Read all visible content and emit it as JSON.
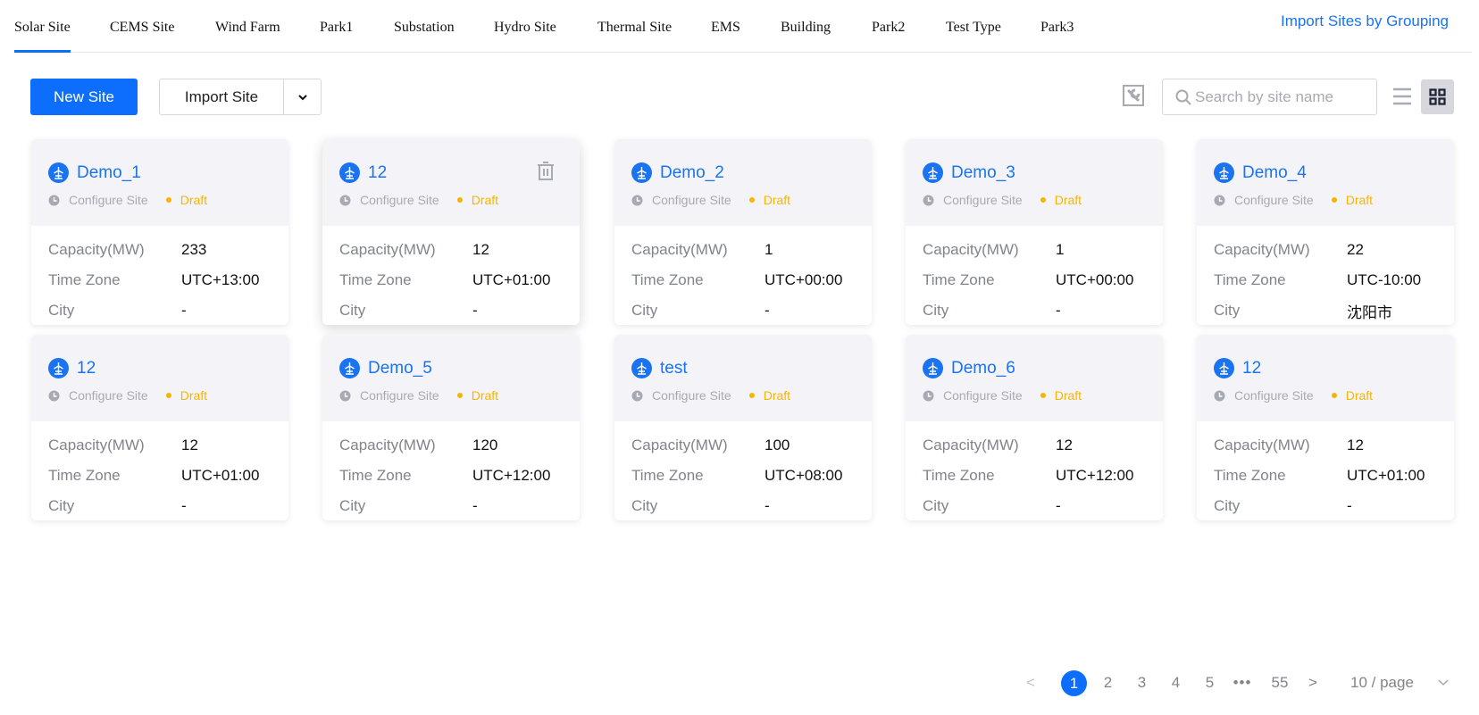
{
  "tabs": [
    "Solar Site",
    "CEMS Site",
    "Wind Farm",
    "Park1",
    "Substation",
    "Hydro Site",
    "Thermal Site",
    "EMS",
    "Building",
    "Park2",
    "Test Type",
    "Park3"
  ],
  "active_tab": "Solar Site",
  "import_by_grouping": "Import Sites by Grouping",
  "toolbar": {
    "new_site": "New Site",
    "import_site": "Import Site",
    "search_placeholder": "Search by site name"
  },
  "labels": {
    "capacity": "Capacity(MW)",
    "timezone": "Time Zone",
    "city": "City",
    "configure": "Configure Site"
  },
  "colors": {
    "accent": "#0d6efd",
    "draft": "#f7b500"
  },
  "sites": [
    {
      "name": "Demo_1",
      "status": "Draft",
      "capacity": "233",
      "timezone": "UTC+13:00",
      "city": "-"
    },
    {
      "name": "12",
      "status": "Draft",
      "capacity": "12",
      "timezone": "UTC+01:00",
      "city": "-"
    },
    {
      "name": "Demo_2",
      "status": "Draft",
      "capacity": "1",
      "timezone": "UTC+00:00",
      "city": "-"
    },
    {
      "name": "Demo_3",
      "status": "Draft",
      "capacity": "1",
      "timezone": "UTC+00:00",
      "city": "-"
    },
    {
      "name": "Demo_4",
      "status": "Draft",
      "capacity": "22",
      "timezone": "UTC-10:00",
      "city": "沈阳市"
    },
    {
      "name": "12",
      "status": "Draft",
      "capacity": "12",
      "timezone": "UTC+01:00",
      "city": "-"
    },
    {
      "name": "Demo_5",
      "status": "Draft",
      "capacity": "120",
      "timezone": "UTC+12:00",
      "city": "-"
    },
    {
      "name": "test",
      "status": "Draft",
      "capacity": "100",
      "timezone": "UTC+08:00",
      "city": "-"
    },
    {
      "name": "Demo_6",
      "status": "Draft",
      "capacity": "12",
      "timezone": "UTC+12:00",
      "city": "-"
    },
    {
      "name": "12",
      "status": "Draft",
      "capacity": "12",
      "timezone": "UTC+01:00",
      "city": "-"
    }
  ],
  "pagination": {
    "prev": "<",
    "pages": [
      "1",
      "2",
      "3",
      "4",
      "5"
    ],
    "ellipsis": "•••",
    "last": "55",
    "next": ">",
    "current": "1",
    "page_size": "10 / page"
  }
}
